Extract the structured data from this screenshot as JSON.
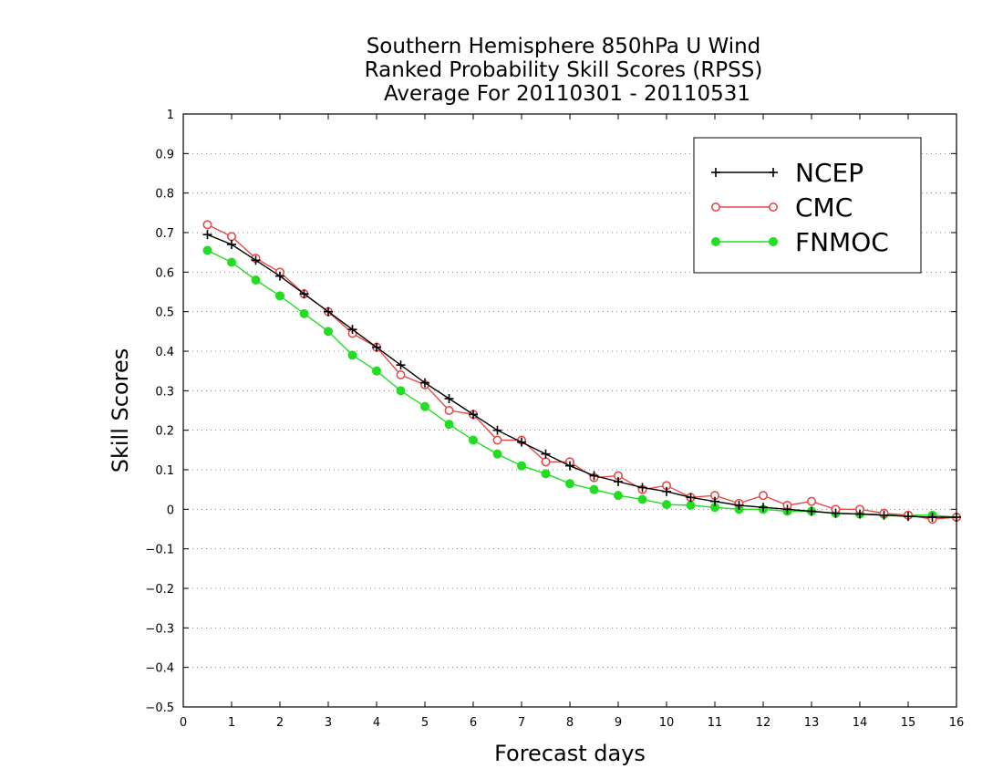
{
  "chart_data": {
    "type": "line",
    "title_lines": [
      "Southern Hemisphere 850hPa U Wind",
      "Ranked Probability Skill Scores (RPSS)",
      "Average For 20110301 - 20110531"
    ],
    "xlabel": "Forecast days",
    "ylabel": "Skill Scores",
    "xlim": [
      0,
      16
    ],
    "ylim": [
      -0.5,
      1
    ],
    "xticks": [
      "0",
      "1",
      "2",
      "3",
      "4",
      "5",
      "6",
      "7",
      "8",
      "9",
      "10",
      "11",
      "12",
      "13",
      "14",
      "15",
      "16"
    ],
    "yticks": [
      "1",
      "0.9",
      "0.8",
      "0.7",
      "0.6",
      "0.5",
      "0.4",
      "0.3",
      "0.2",
      "0.1",
      "0",
      "−0.1",
      "−0.2",
      "−0.3",
      "−0.4",
      "−0.5"
    ],
    "grid": "horizontal dotted",
    "legend_position": "top-right",
    "x": [
      0.5,
      1.0,
      1.5,
      2.0,
      2.5,
      3.0,
      3.5,
      4.0,
      4.5,
      5.0,
      5.5,
      6.0,
      6.5,
      7.0,
      7.5,
      8.0,
      8.5,
      9.0,
      9.5,
      10.0,
      10.5,
      11.0,
      11.5,
      12.0,
      12.5,
      13.0,
      13.5,
      14.0,
      14.5,
      15.0,
      15.5,
      16.0
    ],
    "series": [
      {
        "name": "NCEP",
        "color": "#000000",
        "marker": "plus",
        "values": [
          0.695,
          0.67,
          0.63,
          0.59,
          0.545,
          0.5,
          0.455,
          0.41,
          0.365,
          0.32,
          0.28,
          0.24,
          0.2,
          0.17,
          0.14,
          0.11,
          0.085,
          0.07,
          0.055,
          0.045,
          0.03,
          0.02,
          0.01,
          0.005,
          0.0,
          -0.005,
          -0.01,
          -0.012,
          -0.015,
          -0.018,
          -0.02,
          -0.02
        ]
      },
      {
        "name": "CMC",
        "color": "#e34a4a",
        "marker": "open-circle",
        "values": [
          0.72,
          0.69,
          0.635,
          0.6,
          0.545,
          0.5,
          0.445,
          0.41,
          0.34,
          0.315,
          0.25,
          0.24,
          0.175,
          0.175,
          0.12,
          0.12,
          0.08,
          0.085,
          0.05,
          0.06,
          0.03,
          0.035,
          0.015,
          0.035,
          0.01,
          0.02,
          0.0,
          0.0,
          -0.01,
          -0.015,
          -0.025,
          -0.02
        ]
      },
      {
        "name": "FNMOC",
        "color": "#22dd22",
        "marker": "filled-circle",
        "values": [
          0.655,
          0.625,
          0.58,
          0.54,
          0.495,
          0.45,
          0.39,
          0.35,
          0.3,
          0.26,
          0.215,
          0.175,
          0.14,
          0.11,
          0.09,
          0.065,
          0.05,
          0.035,
          0.025,
          0.012,
          0.01,
          0.005,
          0.0,
          0.0,
          -0.005,
          -0.005,
          -0.01,
          -0.012,
          -0.013,
          -0.015,
          -0.015,
          -0.02
        ]
      }
    ]
  }
}
